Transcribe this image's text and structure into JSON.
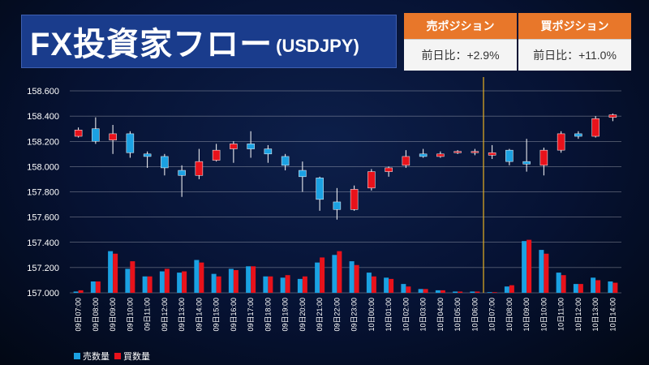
{
  "title": {
    "main": "FX投資家フロー",
    "sub": "(USDJPY)"
  },
  "positions": {
    "sell": {
      "header": "売ポジション",
      "change": "前日比：+2.9%"
    },
    "buy": {
      "header": "買ポジション",
      "change": "前日比：+11.0%"
    }
  },
  "colors": {
    "sell": "#1ba1e2",
    "buy": "#e8121b",
    "marker": "#e6b022",
    "grid": "#ffffff",
    "text": "#ffffff"
  },
  "chart_data": {
    "type": "candlestick+bar",
    "y_ticks": [
      "158.600",
      "158.400",
      "158.200",
      "158.000",
      "157.800",
      "157.600",
      "157.400",
      "157.200",
      "157.000"
    ],
    "ylim": [
      157.0,
      158.6
    ],
    "categories": [
      "09日07:00",
      "09日08:00",
      "09日09:00",
      "09日10:00",
      "09日11:00",
      "09日12:00",
      "09日13:00",
      "09日14:00",
      "09日15:00",
      "09日16:00",
      "09日17:00",
      "09日18:00",
      "09日19:00",
      "09日20:00",
      "09日21:00",
      "09日22:00",
      "09日23:00",
      "10日00:00",
      "10日01:00",
      "10日02:00",
      "10日03:00",
      "10日04:00",
      "10日05:00",
      "10日06:00",
      "10日07:00",
      "10日08:00",
      "10日09:00",
      "10日10:00",
      "10日11:00",
      "10日12:00",
      "10日13:00",
      "10日14:00"
    ],
    "candles": [
      {
        "o": 158.24,
        "c": 158.29,
        "h": 158.31,
        "l": 158.23
      },
      {
        "o": 158.3,
        "c": 158.2,
        "h": 158.39,
        "l": 158.18
      },
      {
        "o": 158.21,
        "c": 158.26,
        "h": 158.33,
        "l": 158.1
      },
      {
        "o": 158.26,
        "c": 158.11,
        "h": 158.28,
        "l": 158.07
      },
      {
        "o": 158.1,
        "c": 158.08,
        "h": 158.12,
        "l": 157.99
      },
      {
        "o": 158.08,
        "c": 157.99,
        "h": 158.1,
        "l": 157.93
      },
      {
        "o": 157.97,
        "c": 157.93,
        "h": 158.01,
        "l": 157.76
      },
      {
        "o": 157.93,
        "c": 158.04,
        "h": 158.14,
        "l": 157.9
      },
      {
        "o": 158.05,
        "c": 158.13,
        "h": 158.18,
        "l": 158.04
      },
      {
        "o": 158.14,
        "c": 158.18,
        "h": 158.2,
        "l": 158.03
      },
      {
        "o": 158.18,
        "c": 158.14,
        "h": 158.28,
        "l": 158.07
      },
      {
        "o": 158.14,
        "c": 158.1,
        "h": 158.17,
        "l": 158.03
      },
      {
        "o": 158.08,
        "c": 158.01,
        "h": 158.1,
        "l": 157.97
      },
      {
        "o": 157.97,
        "c": 157.92,
        "h": 158.04,
        "l": 157.8
      },
      {
        "o": 157.91,
        "c": 157.74,
        "h": 157.92,
        "l": 157.65
      },
      {
        "o": 157.72,
        "c": 157.66,
        "h": 157.83,
        "l": 157.58
      },
      {
        "o": 157.66,
        "c": 157.82,
        "h": 157.85,
        "l": 157.65
      },
      {
        "o": 157.83,
        "c": 157.96,
        "h": 157.98,
        "l": 157.81
      },
      {
        "o": 157.96,
        "c": 157.99,
        "h": 158.0,
        "l": 157.92
      },
      {
        "o": 158.01,
        "c": 158.08,
        "h": 158.13,
        "l": 157.99
      },
      {
        "o": 158.1,
        "c": 158.08,
        "h": 158.14,
        "l": 158.07
      },
      {
        "o": 158.08,
        "c": 158.1,
        "h": 158.12,
        "l": 158.07
      },
      {
        "o": 158.11,
        "c": 158.12,
        "h": 158.13,
        "l": 158.1
      },
      {
        "o": 158.12,
        "c": 158.12,
        "h": 158.14,
        "l": 158.09
      },
      {
        "o": 158.09,
        "c": 158.11,
        "h": 158.17,
        "l": 158.06
      },
      {
        "o": 158.13,
        "c": 158.04,
        "h": 158.14,
        "l": 158.01
      },
      {
        "o": 158.04,
        "c": 158.02,
        "h": 158.22,
        "l": 157.96
      },
      {
        "o": 158.01,
        "c": 158.13,
        "h": 158.15,
        "l": 157.93
      },
      {
        "o": 158.13,
        "c": 158.26,
        "h": 158.28,
        "l": 158.11
      },
      {
        "o": 158.26,
        "c": 158.24,
        "h": 158.28,
        "l": 158.22
      },
      {
        "o": 158.24,
        "c": 158.38,
        "h": 158.4,
        "l": 158.23
      },
      {
        "o": 158.39,
        "c": 158.41,
        "h": 158.42,
        "l": 158.36
      }
    ],
    "series": [
      {
        "name": "売数量",
        "values": [
          157.01,
          157.09,
          157.33,
          157.19,
          157.13,
          157.17,
          157.16,
          157.26,
          157.15,
          157.19,
          157.21,
          157.13,
          157.12,
          157.11,
          157.24,
          157.3,
          157.25,
          157.16,
          157.12,
          157.07,
          157.03,
          157.02,
          157.01,
          157.01,
          157.005,
          157.05,
          157.41,
          157.34,
          157.16,
          157.07,
          157.12,
          157.09
        ]
      },
      {
        "name": "買数量",
        "values": [
          157.02,
          157.09,
          157.31,
          157.25,
          157.13,
          157.19,
          157.17,
          157.24,
          157.13,
          157.18,
          157.21,
          157.13,
          157.14,
          157.13,
          157.28,
          157.33,
          157.22,
          157.13,
          157.11,
          157.05,
          157.03,
          157.02,
          157.01,
          157.01,
          157.005,
          157.06,
          157.42,
          157.31,
          157.14,
          157.07,
          157.1,
          157.08
        ]
      }
    ],
    "marker_category": "10日07:00",
    "grid": true,
    "legend_placement": "bottom-left"
  }
}
